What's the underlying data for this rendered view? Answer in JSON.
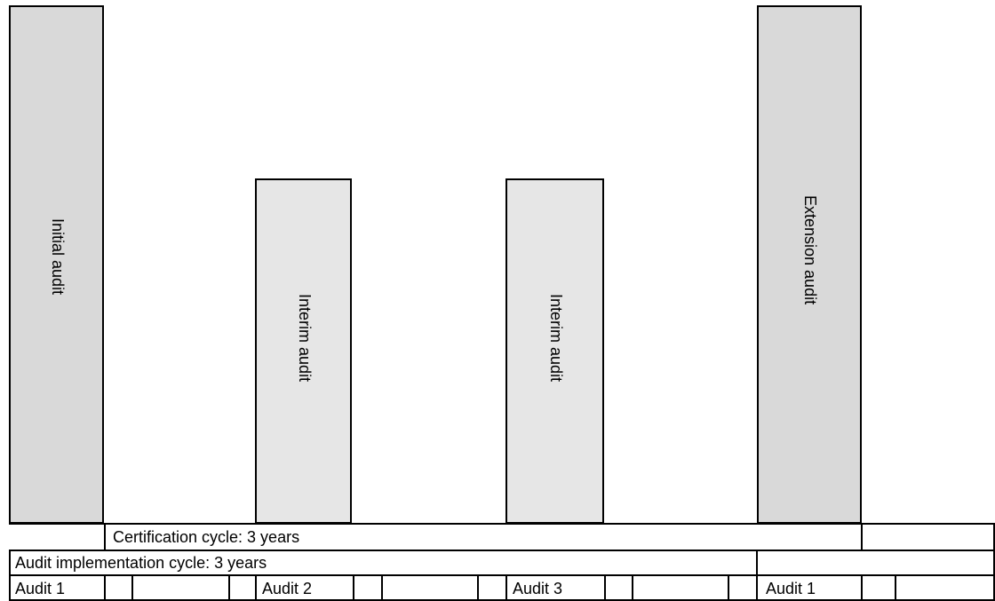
{
  "bars": [
    {
      "label": "Initial audit",
      "tone": "dark"
    },
    {
      "label": "Interim audit",
      "tone": "light"
    },
    {
      "label": "Interim audit",
      "tone": "light"
    },
    {
      "label": "Extension audit",
      "tone": "dark"
    }
  ],
  "rows": {
    "certification_cycle": "Certification cycle: 3 years",
    "audit_implementation_cycle": "Audit implementation cycle: 3 years",
    "audits": [
      "Audit 1",
      "Audit 2",
      "Audit 3",
      "Audit 1"
    ]
  },
  "colors": {
    "dark_bar": "#d9d9d9",
    "light_bar": "#e6e6e6",
    "stroke": "#000000"
  }
}
